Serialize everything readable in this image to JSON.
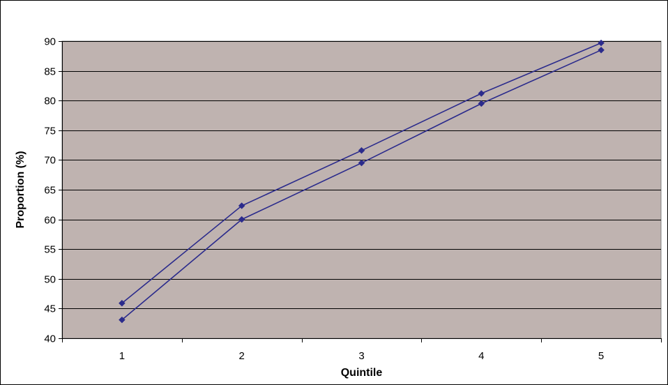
{
  "colors": {
    "plot_background": "#bfb3b0",
    "gridline": "#000000",
    "series_line": "#2b2b8c",
    "marker": "#2b2b8c"
  },
  "chart_data": {
    "type": "line",
    "title": "",
    "xlabel": "Quintile",
    "ylabel": "Proportion (%)",
    "categories": [
      "1",
      "2",
      "3",
      "4",
      "5"
    ],
    "ylim": [
      40,
      90
    ],
    "yticks": [
      "40",
      "45",
      "50",
      "55",
      "60",
      "65",
      "70",
      "75",
      "80",
      "85",
      "90"
    ],
    "grid": true,
    "legend": "none",
    "marker": "diamond",
    "series": [
      {
        "values": [
          45.9,
          62.3,
          71.6,
          81.2,
          89.7
        ]
      },
      {
        "values": [
          43.1,
          60.0,
          69.5,
          79.5,
          88.5
        ]
      }
    ]
  }
}
